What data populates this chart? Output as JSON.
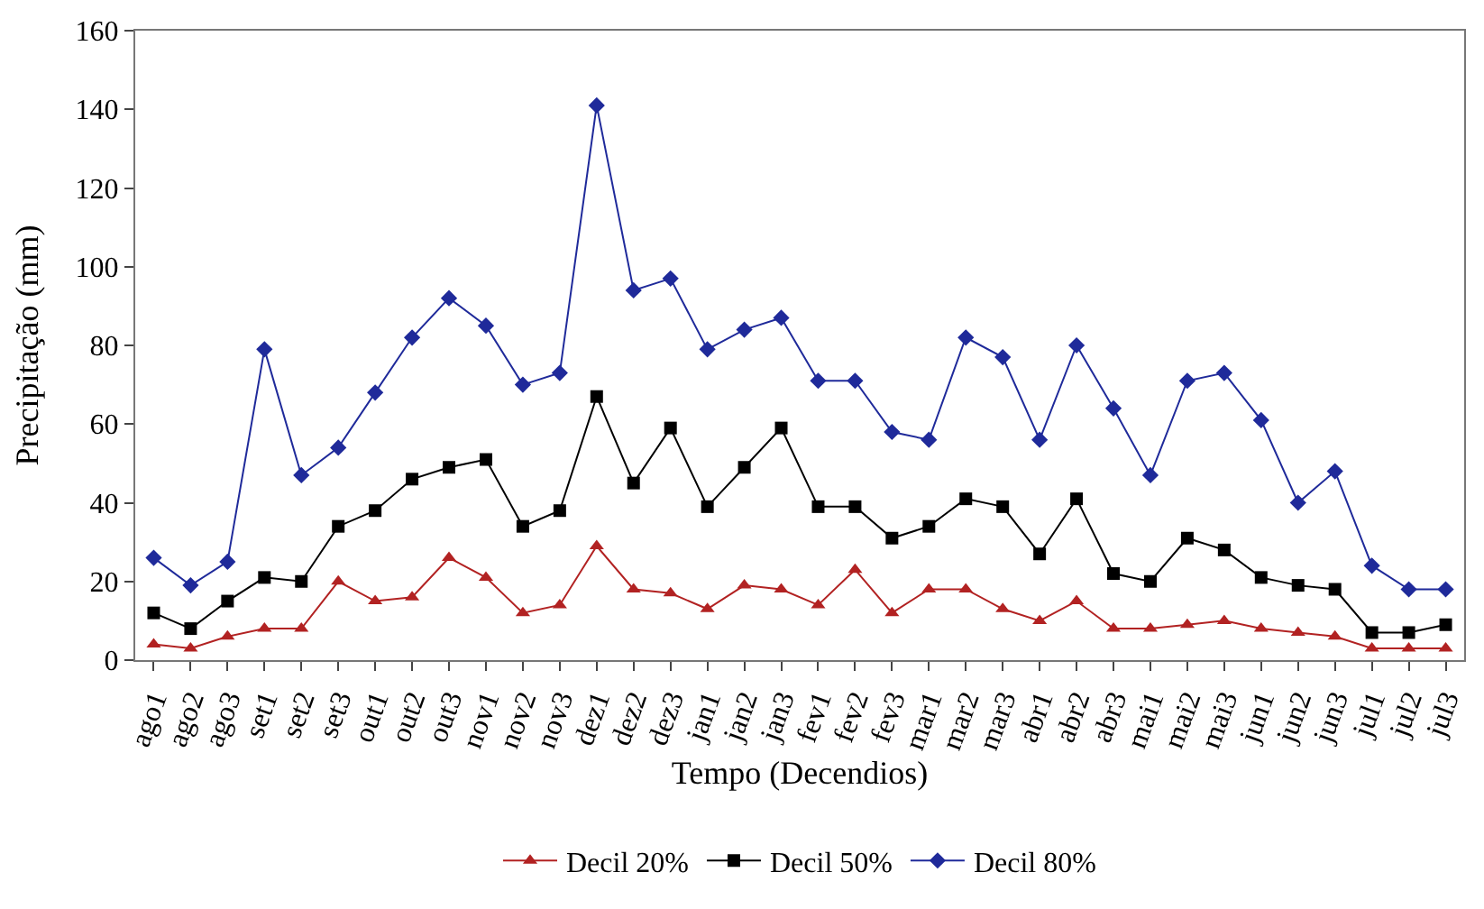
{
  "chart_data": {
    "type": "line",
    "xlabel": "Tempo (Decendios)",
    "ylabel": "Precipitação (mm)",
    "categories": [
      "ago1",
      "ago2",
      "ago3",
      "set1",
      "set2",
      "set3",
      "out1",
      "out2",
      "out3",
      "nov1",
      "nov2",
      "nov3",
      "dez1",
      "dez2",
      "dez3",
      "jan1",
      "jan2",
      "jan3",
      "fev1",
      "fev2",
      "fev3",
      "mar1",
      "mar2",
      "mar3",
      "abr1",
      "abr2",
      "abr3",
      "mai1",
      "mai2",
      "mai3",
      "jun1",
      "jun2",
      "jun3",
      "jul1",
      "jul2",
      "jul3"
    ],
    "ylim": [
      0,
      160
    ],
    "yticks": [
      0,
      20,
      40,
      60,
      80,
      100,
      120,
      140,
      160
    ],
    "legend": "bottom",
    "line_style": "solid",
    "series": [
      {
        "name": "Decil 20%",
        "color": "#b22222",
        "marker": "triangle",
        "values": [
          4,
          3,
          6,
          8,
          8,
          20,
          15,
          16,
          26,
          21,
          12,
          14,
          29,
          18,
          17,
          13,
          19,
          18,
          14,
          23,
          12,
          18,
          18,
          13,
          10,
          15,
          8,
          8,
          9,
          10,
          8,
          7,
          6,
          3,
          3,
          3
        ]
      },
      {
        "name": "Decil 50%",
        "color": "#000000",
        "marker": "square",
        "values": [
          12,
          8,
          15,
          21,
          20,
          34,
          38,
          46,
          49,
          51,
          34,
          38,
          67,
          45,
          59,
          39,
          49,
          59,
          39,
          39,
          31,
          34,
          41,
          39,
          27,
          41,
          22,
          20,
          31,
          28,
          21,
          19,
          18,
          7,
          7,
          9
        ]
      },
      {
        "name": "Decil 80%",
        "color": "#1f2a9a",
        "marker": "diamond",
        "values": [
          26,
          19,
          25,
          79,
          47,
          54,
          68,
          82,
          92,
          85,
          70,
          73,
          141,
          94,
          97,
          79,
          84,
          87,
          71,
          71,
          58,
          56,
          82,
          77,
          56,
          80,
          64,
          47,
          71,
          73,
          61,
          40,
          48,
          24,
          18,
          18
        ]
      }
    ]
  }
}
